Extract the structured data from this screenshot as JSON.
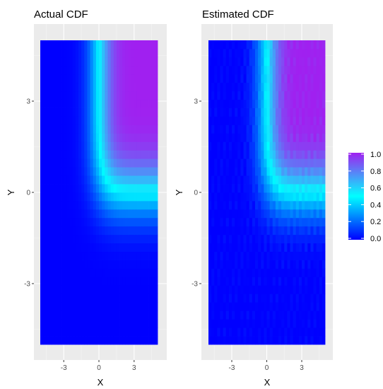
{
  "chart_data": [
    {
      "type": "heatmap",
      "title": "Actual CDF",
      "xlabel": "X",
      "ylabel": "Y",
      "x_ticks": [
        -3,
        0,
        3
      ],
      "y_ticks": [
        -3,
        0,
        3
      ],
      "x_tick_labels": [
        "-3",
        "0",
        "3"
      ],
      "y_tick_labels": [
        "-3",
        "0",
        "3"
      ],
      "xlim": [
        -5,
        5
      ],
      "ylim": [
        -5,
        5
      ],
      "value": "joint CDF F(x,y)",
      "grid": true
    },
    {
      "type": "heatmap",
      "title": "Estimated CDF",
      "xlabel": "X",
      "ylabel": "Y",
      "x_ticks": [
        -3,
        0,
        3
      ],
      "y_ticks": [
        -3,
        0,
        3
      ],
      "x_tick_labels": [
        "-3",
        "0",
        "3"
      ],
      "y_tick_labels": [
        "-3",
        "0",
        "3"
      ],
      "xlim": [
        -5,
        5
      ],
      "ylim": [
        -5,
        5
      ],
      "value": "joint CDF F(x,y)",
      "grid": true
    }
  ],
  "legend": {
    "placement": "right",
    "labels": [
      "1.0",
      "0.8",
      "0.6",
      "0.4",
      "0.2",
      "0.0"
    ],
    "values": [
      1.0,
      0.8,
      0.6,
      0.4,
      0.2,
      0.0
    ],
    "colors": {
      "low": "#0000ff",
      "mid": "#00ffff",
      "high": "#a020f0"
    }
  },
  "colors": {
    "panel_bg": "#ebebeb",
    "grid_major": "#ffffff",
    "tick_text": "#4d4d4d"
  }
}
